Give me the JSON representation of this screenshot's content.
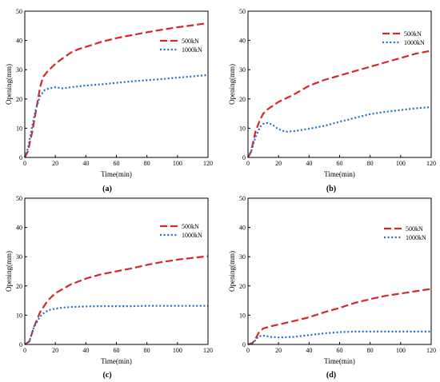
{
  "chart_data": [
    {
      "type": "line",
      "panel_label": "(a)",
      "xlabel": "Time(min)",
      "ylabel": "Opening(mm)",
      "xlim": [
        0,
        120
      ],
      "ylim": [
        0,
        50
      ],
      "xticks": [
        "0",
        "20",
        "40",
        "60",
        "80",
        "100",
        "120"
      ],
      "yticks": [
        "0",
        "10",
        "20",
        "30",
        "40",
        "50"
      ],
      "legend_position": "right",
      "series": [
        {
          "name": "500kN",
          "color": "#d62728",
          "dash": "long-dash",
          "x": [
            0,
            2,
            5,
            8,
            10,
            12,
            15,
            20,
            25,
            30,
            35,
            40,
            50,
            60,
            70,
            80,
            90,
            100,
            110,
            118
          ],
          "y": [
            0,
            2,
            9,
            18,
            24,
            27.5,
            29.5,
            32,
            34,
            35.8,
            37,
            37.8,
            39.5,
            40.8,
            41.8,
            42.8,
            43.7,
            44.5,
            45.2,
            45.8
          ]
        },
        {
          "name": "1000kN",
          "color": "#1f6fc7",
          "dash": "dotted",
          "x": [
            0,
            2,
            5,
            7,
            10,
            13,
            16,
            20,
            25,
            30,
            40,
            50,
            60,
            70,
            80,
            90,
            100,
            110,
            120
          ],
          "y": [
            0,
            3,
            11,
            16,
            21,
            23,
            23.6,
            24,
            23.6,
            24,
            24.6,
            25,
            25.5,
            26,
            26.4,
            26.8,
            27.3,
            27.7,
            28.2
          ]
        }
      ]
    },
    {
      "type": "line",
      "panel_label": "(b)",
      "xlabel": "Time(min)",
      "ylabel": "Opening(mm)",
      "xlim": [
        0,
        120
      ],
      "ylim": [
        0,
        50
      ],
      "xticks": [
        "0",
        "20",
        "40",
        "60",
        "80",
        "100",
        "120"
      ],
      "yticks": [
        "0",
        "10",
        "20",
        "30",
        "40",
        "50"
      ],
      "legend_position": "top-right",
      "series": [
        {
          "name": "500kN",
          "color": "#d62728",
          "dash": "long-dash",
          "x": [
            0,
            2,
            5,
            8,
            10,
            13,
            20,
            30,
            40,
            50,
            60,
            70,
            80,
            90,
            100,
            110,
            120
          ],
          "y": [
            0,
            2,
            9,
            13,
            15,
            16.5,
            19,
            21.5,
            24.5,
            26.5,
            28,
            29.5,
            31,
            32.5,
            34,
            35.5,
            36.5
          ]
        },
        {
          "name": "1000kN",
          "color": "#1f6fc7",
          "dash": "dotted",
          "x": [
            0,
            2,
            5,
            8,
            10,
            13,
            16,
            19,
            22,
            25,
            30,
            40,
            50,
            60,
            70,
            80,
            90,
            100,
            110,
            120
          ],
          "y": [
            0,
            2,
            7,
            10.5,
            11.5,
            11.8,
            11.2,
            10,
            9.2,
            8.8,
            9,
            9.8,
            10.8,
            12.2,
            13.5,
            14.8,
            15.6,
            16.2,
            16.8,
            17.2
          ]
        }
      ]
    },
    {
      "type": "line",
      "panel_label": "(c)",
      "xlabel": "Time(min)",
      "ylabel": "Opening(mm)",
      "xlim": [
        0,
        120
      ],
      "ylim": [
        0,
        50
      ],
      "xticks": [
        "0",
        "20",
        "40",
        "60",
        "80",
        "100",
        "120"
      ],
      "yticks": [
        "0",
        "10",
        "20",
        "30",
        "40",
        "50"
      ],
      "legend_position": "top-right",
      "series": [
        {
          "name": "500kN",
          "color": "#d62728",
          "dash": "long-dash",
          "x": [
            0,
            3,
            6,
            10,
            15,
            20,
            25,
            30,
            40,
            50,
            60,
            70,
            80,
            90,
            100,
            110,
            120
          ],
          "y": [
            0,
            1,
            6,
            11,
            15,
            17.5,
            19,
            20.5,
            22.5,
            24,
            25,
            26,
            27.2,
            28.2,
            29,
            29.6,
            30.2
          ]
        },
        {
          "name": "1000kN",
          "color": "#1f6fc7",
          "dash": "dotted",
          "x": [
            0,
            3,
            6,
            10,
            13,
            16,
            20,
            25,
            30,
            40,
            50,
            60,
            70,
            80,
            90,
            100,
            110,
            120
          ],
          "y": [
            0,
            1,
            6,
            9.5,
            11,
            11.8,
            12.2,
            12.6,
            12.8,
            13,
            13.1,
            13.1,
            13.1,
            13.2,
            13.2,
            13.2,
            13.2,
            13.2
          ]
        }
      ]
    },
    {
      "type": "line",
      "panel_label": "(d)",
      "xlabel": "Time(min)",
      "ylabel": "Opening(mm)",
      "xlim": [
        0,
        120
      ],
      "ylim": [
        0,
        50
      ],
      "xticks": [
        "0",
        "20",
        "40",
        "60",
        "80",
        "100",
        "120"
      ],
      "yticks": [
        "0",
        "10",
        "20",
        "30",
        "40",
        "50"
      ],
      "legend_position": "top-right",
      "series": [
        {
          "name": "500kN",
          "color": "#d62728",
          "dash": "long-dash",
          "x": [
            0,
            3,
            5,
            7,
            10,
            15,
            20,
            30,
            40,
            50,
            60,
            70,
            80,
            90,
            100,
            110,
            120
          ],
          "y": [
            0,
            0.5,
            2,
            4,
            5.5,
            6.2,
            6.8,
            8,
            9.3,
            11,
            12.5,
            14.2,
            15.5,
            16.6,
            17.4,
            18.2,
            19
          ]
        },
        {
          "name": "1000kN",
          "color": "#1f6fc7",
          "dash": "dotted",
          "x": [
            0,
            3,
            5,
            7,
            10,
            15,
            20,
            30,
            40,
            50,
            60,
            70,
            80,
            90,
            100,
            110,
            120
          ],
          "y": [
            0,
            0.5,
            1.5,
            2.8,
            3,
            2.6,
            2.4,
            2.6,
            3.2,
            3.8,
            4.2,
            4.4,
            4.4,
            4.4,
            4.4,
            4.4,
            4.4
          ]
        }
      ]
    }
  ]
}
